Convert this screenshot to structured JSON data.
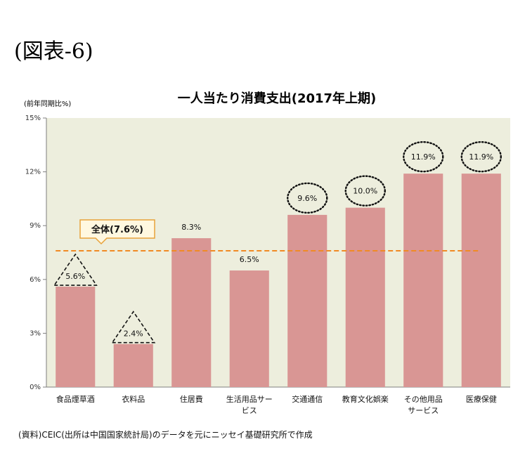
{
  "figure_label": "(図表-6)",
  "source_note": "(資料)CEIC(出所は中国国家統計局)のデータを元にニッセイ基礎研究所で作成",
  "chart_data": {
    "type": "bar",
    "title": "一人当たり消費支出(2017年上期)",
    "ylabel": "(前年同期比%)",
    "xlabel": "",
    "ylim": [
      0,
      15
    ],
    "yticks": [
      "0%",
      "3%",
      "6%",
      "9%",
      "12%",
      "15%"
    ],
    "categories": [
      [
        "食品煙草酒"
      ],
      [
        "衣料品"
      ],
      [
        "住居費"
      ],
      [
        "生活用品サー",
        "ビス"
      ],
      [
        "交通通信"
      ],
      [
        "教育文化娯楽"
      ],
      [
        "その他用品",
        "サービス"
      ],
      [
        "医療保健"
      ]
    ],
    "values": [
      5.6,
      2.4,
      8.3,
      6.5,
      9.6,
      10.0,
      11.9,
      11.9
    ],
    "value_labels": [
      "5.6%",
      "2.4%",
      "8.3%",
      "6.5%",
      "9.6%",
      "10.0%",
      "11.9%",
      "11.9%"
    ],
    "markers": [
      "triangle",
      "triangle",
      "none",
      "none",
      "circle",
      "circle",
      "circle",
      "circle"
    ],
    "reference_line": {
      "value": 7.6,
      "label": "全体(7.6%)",
      "color": "#f08a24"
    },
    "bar_color": "#d99694",
    "plot_bg": "#edeedd",
    "grid": false,
    "legend": "none"
  }
}
